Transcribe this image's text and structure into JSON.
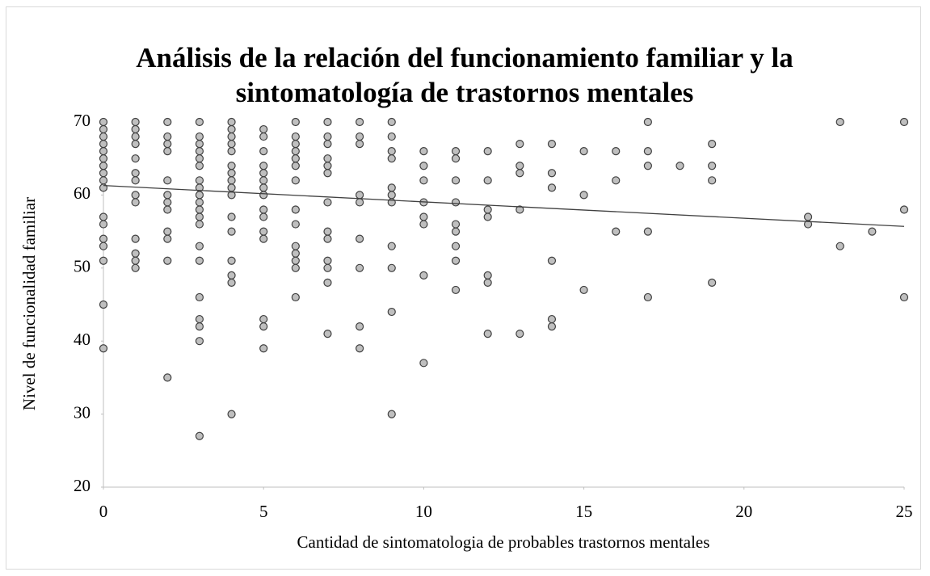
{
  "chart_data": {
    "type": "scatter",
    "title": "Análisis de la relación del funcionamiento familiar y la sintomatología de trastornos mentales",
    "xlabel": "Cantidad de sintomatologia de probables trastornos mentales",
    "ylabel": "Nivel de funcionalidad familiar",
    "x": [
      0,
      0,
      0,
      0,
      0,
      0,
      0,
      0,
      0,
      0,
      0,
      0,
      0,
      0,
      0,
      0,
      0,
      1,
      1,
      1,
      1,
      1,
      1,
      1,
      1,
      1,
      1,
      1,
      1,
      1,
      2,
      2,
      2,
      2,
      2,
      2,
      2,
      2,
      2,
      2,
      2,
      2,
      3,
      3,
      3,
      3,
      3,
      3,
      3,
      3,
      3,
      3,
      3,
      3,
      3,
      3,
      3,
      3,
      3,
      3,
      3,
      3,
      4,
      4,
      4,
      4,
      4,
      4,
      4,
      4,
      4,
      4,
      4,
      4,
      4,
      4,
      4,
      4,
      5,
      5,
      5,
      5,
      5,
      5,
      5,
      5,
      5,
      5,
      5,
      5,
      5,
      5,
      5,
      6,
      6,
      6,
      6,
      6,
      6,
      6,
      6,
      6,
      6,
      6,
      6,
      6,
      6,
      7,
      7,
      7,
      7,
      7,
      7,
      7,
      7,
      7,
      7,
      7,
      7,
      7,
      8,
      8,
      8,
      8,
      8,
      8,
      8,
      8,
      8,
      9,
      9,
      9,
      9,
      9,
      9,
      9,
      9,
      9,
      9,
      9,
      10,
      10,
      10,
      10,
      10,
      10,
      10,
      10,
      11,
      11,
      11,
      11,
      11,
      11,
      11,
      11,
      11,
      12,
      12,
      12,
      12,
      12,
      12,
      12,
      13,
      13,
      13,
      13,
      13,
      14,
      14,
      14,
      14,
      14,
      14,
      15,
      15,
      15,
      16,
      16,
      16,
      17,
      17,
      17,
      17,
      17,
      18,
      19,
      19,
      19,
      19,
      22,
      22,
      23,
      23,
      24,
      25,
      25,
      25
    ],
    "values": [
      70,
      69,
      68,
      67,
      66,
      65,
      64,
      63,
      62,
      61,
      57,
      56,
      54,
      53,
      51,
      45,
      39,
      70,
      69,
      68,
      67,
      65,
      63,
      62,
      60,
      59,
      54,
      52,
      51,
      50,
      70,
      68,
      67,
      66,
      62,
      60,
      59,
      58,
      55,
      54,
      51,
      35,
      70,
      68,
      67,
      66,
      65,
      64,
      62,
      61,
      60,
      59,
      58,
      57,
      56,
      53,
      51,
      46,
      43,
      42,
      40,
      27,
      70,
      69,
      68,
      67,
      66,
      64,
      63,
      62,
      61,
      60,
      57,
      55,
      51,
      49,
      48,
      30,
      69,
      68,
      66,
      64,
      63,
      62,
      61,
      60,
      58,
      57,
      55,
      54,
      43,
      42,
      39,
      70,
      68,
      67,
      66,
      65,
      64,
      62,
      58,
      56,
      53,
      52,
      51,
      50,
      46,
      70,
      68,
      67,
      65,
      64,
      63,
      59,
      55,
      54,
      51,
      50,
      48,
      41,
      70,
      68,
      67,
      60,
      59,
      54,
      50,
      42,
      39,
      70,
      68,
      66,
      65,
      61,
      60,
      59,
      53,
      50,
      44,
      30,
      66,
      64,
      62,
      59,
      57,
      56,
      49,
      37,
      66,
      65,
      62,
      59,
      56,
      55,
      53,
      51,
      47,
      66,
      62,
      58,
      57,
      49,
      48,
      41,
      67,
      64,
      63,
      58,
      41,
      67,
      63,
      61,
      51,
      43,
      42,
      66,
      60,
      47,
      66,
      62,
      55,
      70,
      66,
      64,
      55,
      46,
      64,
      67,
      64,
      62,
      48,
      57,
      56,
      70,
      53,
      55,
      70,
      58,
      46
    ],
    "color": "#bfbfbf",
    "trendline": {
      "x": [
        0,
        25
      ],
      "y": [
        61.3,
        55.7
      ]
    },
    "xlim": [
      0,
      25
    ],
    "xticks": [
      0,
      5,
      10,
      15,
      20,
      25
    ],
    "ylim": [
      20,
      70
    ],
    "yticks": [
      20,
      30,
      40,
      50,
      60,
      70
    ],
    "grid": false
  }
}
